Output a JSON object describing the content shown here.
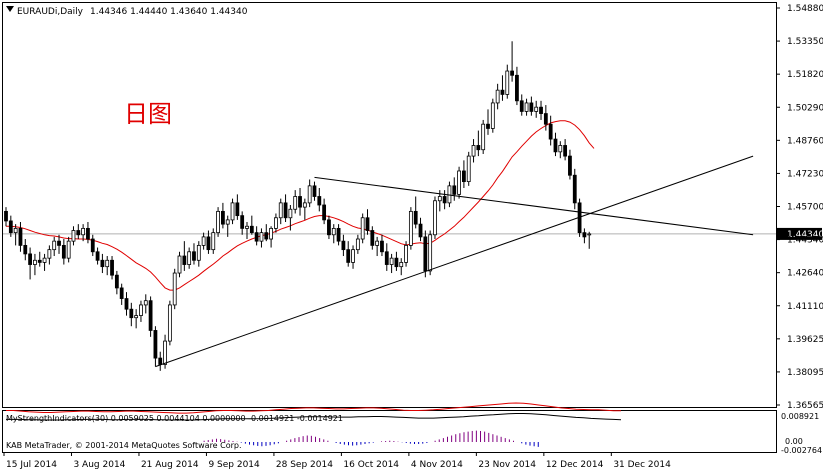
{
  "header": {
    "symbol": "EURAUDi,Daily",
    "ohlc": "1.44346 1.44440 1.43640 1.44340"
  },
  "annotation": "日图",
  "indicator": {
    "label": "MyStrengthIndicators(30) 0.0059025 0.0044104 0.0000000 -0.0014921 -0.0014921",
    "scale_top": "0.008921",
    "scale_zero": "0.00",
    "scale_bottom": "-0.002764"
  },
  "copyright": "KAB MetaTrader, © 2001-2014 MetaQuotes Software Corp.",
  "colors": {
    "candle": "#000000",
    "ma": "#e00000",
    "trendline": "#000000",
    "indicator_line_a": "#e00000",
    "indicator_line_b": "#000000",
    "indicator_hist": "#800080",
    "indicator_hist_alt": "#0000c0",
    "current_price_line": "#b0b0b0"
  },
  "chart_data": {
    "type": "candlestick",
    "price_axis": {
      "labels": [
        "1.54880",
        "1.53350",
        "1.51820",
        "1.50290",
        "1.48760",
        "1.47230",
        "1.45700",
        "1.44340",
        "1.42640",
        "1.41110",
        "1.39625",
        "1.38095",
        "1.36565"
      ],
      "ylim": [
        1.362,
        1.552
      ],
      "current_price": 1.4434,
      "current_price_label": "1.44340"
    },
    "date_axis": {
      "labels": [
        "15 Jul 2014",
        "3 Aug 2014",
        "21 Aug 2014",
        "9 Sep 2014",
        "28 Sep 2014",
        "16 Oct 2014",
        "4 Nov 2014",
        "23 Nov 2014",
        "12 Dec 2014",
        "31 Dec 2014"
      ],
      "label_bar_index": [
        0,
        14,
        28,
        42,
        56,
        70,
        84,
        98,
        112,
        126
      ]
    },
    "candles": [
      {
        "o": 1.454,
        "h": 1.456,
        "l": 1.447,
        "c": 1.4495
      },
      {
        "o": 1.4495,
        "h": 1.452,
        "l": 1.442,
        "c": 1.444
      },
      {
        "o": 1.444,
        "h": 1.448,
        "l": 1.438,
        "c": 1.446
      },
      {
        "o": 1.446,
        "h": 1.449,
        "l": 1.435,
        "c": 1.438
      },
      {
        "o": 1.438,
        "h": 1.441,
        "l": 1.431,
        "c": 1.434
      },
      {
        "o": 1.434,
        "h": 1.437,
        "l": 1.422,
        "c": 1.429
      },
      {
        "o": 1.429,
        "h": 1.434,
        "l": 1.424,
        "c": 1.431
      },
      {
        "o": 1.431,
        "h": 1.435,
        "l": 1.428,
        "c": 1.43
      },
      {
        "o": 1.43,
        "h": 1.434,
        "l": 1.426,
        "c": 1.432
      },
      {
        "o": 1.432,
        "h": 1.438,
        "l": 1.429,
        "c": 1.436
      },
      {
        "o": 1.436,
        "h": 1.442,
        "l": 1.433,
        "c": 1.44
      },
      {
        "o": 1.44,
        "h": 1.443,
        "l": 1.434,
        "c": 1.438
      },
      {
        "o": 1.438,
        "h": 1.441,
        "l": 1.429,
        "c": 1.432
      },
      {
        "o": 1.432,
        "h": 1.442,
        "l": 1.43,
        "c": 1.44
      },
      {
        "o": 1.44,
        "h": 1.447,
        "l": 1.438,
        "c": 1.445
      },
      {
        "o": 1.445,
        "h": 1.448,
        "l": 1.441,
        "c": 1.443
      },
      {
        "o": 1.443,
        "h": 1.448,
        "l": 1.44,
        "c": 1.446
      },
      {
        "o": 1.446,
        "h": 1.449,
        "l": 1.439,
        "c": 1.441
      },
      {
        "o": 1.441,
        "h": 1.443,
        "l": 1.433,
        "c": 1.435
      },
      {
        "o": 1.435,
        "h": 1.437,
        "l": 1.429,
        "c": 1.431
      },
      {
        "o": 1.431,
        "h": 1.434,
        "l": 1.425,
        "c": 1.428
      },
      {
        "o": 1.428,
        "h": 1.433,
        "l": 1.424,
        "c": 1.431
      },
      {
        "o": 1.431,
        "h": 1.433,
        "l": 1.422,
        "c": 1.424
      },
      {
        "o": 1.424,
        "h": 1.426,
        "l": 1.415,
        "c": 1.418
      },
      {
        "o": 1.418,
        "h": 1.42,
        "l": 1.41,
        "c": 1.413
      },
      {
        "o": 1.413,
        "h": 1.416,
        "l": 1.405,
        "c": 1.408
      },
      {
        "o": 1.408,
        "h": 1.411,
        "l": 1.4,
        "c": 1.404
      },
      {
        "o": 1.404,
        "h": 1.408,
        "l": 1.399,
        "c": 1.405
      },
      {
        "o": 1.405,
        "h": 1.412,
        "l": 1.402,
        "c": 1.41
      },
      {
        "o": 1.41,
        "h": 1.415,
        "l": 1.406,
        "c": 1.412
      },
      {
        "o": 1.412,
        "h": 1.414,
        "l": 1.395,
        "c": 1.398
      },
      {
        "o": 1.398,
        "h": 1.4,
        "l": 1.381,
        "c": 1.385
      },
      {
        "o": 1.385,
        "h": 1.388,
        "l": 1.379,
        "c": 1.382
      },
      {
        "o": 1.382,
        "h": 1.396,
        "l": 1.38,
        "c": 1.393
      },
      {
        "o": 1.393,
        "h": 1.412,
        "l": 1.391,
        "c": 1.41
      },
      {
        "o": 1.41,
        "h": 1.427,
        "l": 1.408,
        "c": 1.425
      },
      {
        "o": 1.425,
        "h": 1.435,
        "l": 1.423,
        "c": 1.433
      },
      {
        "o": 1.433,
        "h": 1.44,
        "l": 1.426,
        "c": 1.429
      },
      {
        "o": 1.429,
        "h": 1.437,
        "l": 1.427,
        "c": 1.435
      },
      {
        "o": 1.435,
        "h": 1.439,
        "l": 1.429,
        "c": 1.431
      },
      {
        "o": 1.431,
        "h": 1.44,
        "l": 1.428,
        "c": 1.438
      },
      {
        "o": 1.438,
        "h": 1.444,
        "l": 1.436,
        "c": 1.442
      },
      {
        "o": 1.442,
        "h": 1.445,
        "l": 1.434,
        "c": 1.436
      },
      {
        "o": 1.436,
        "h": 1.446,
        "l": 1.434,
        "c": 1.444
      },
      {
        "o": 1.444,
        "h": 1.456,
        "l": 1.442,
        "c": 1.454
      },
      {
        "o": 1.454,
        "h": 1.458,
        "l": 1.446,
        "c": 1.448
      },
      {
        "o": 1.448,
        "h": 1.452,
        "l": 1.442,
        "c": 1.45
      },
      {
        "o": 1.45,
        "h": 1.46,
        "l": 1.448,
        "c": 1.458
      },
      {
        "o": 1.458,
        "h": 1.462,
        "l": 1.45,
        "c": 1.452
      },
      {
        "o": 1.452,
        "h": 1.454,
        "l": 1.443,
        "c": 1.446
      },
      {
        "o": 1.446,
        "h": 1.449,
        "l": 1.441,
        "c": 1.447
      },
      {
        "o": 1.447,
        "h": 1.452,
        "l": 1.443,
        "c": 1.444
      },
      {
        "o": 1.444,
        "h": 1.447,
        "l": 1.438,
        "c": 1.44
      },
      {
        "o": 1.44,
        "h": 1.446,
        "l": 1.437,
        "c": 1.444
      },
      {
        "o": 1.444,
        "h": 1.448,
        "l": 1.44,
        "c": 1.441
      },
      {
        "o": 1.441,
        "h": 1.447,
        "l": 1.437,
        "c": 1.446
      },
      {
        "o": 1.446,
        "h": 1.453,
        "l": 1.444,
        "c": 1.451
      },
      {
        "o": 1.451,
        "h": 1.46,
        "l": 1.448,
        "c": 1.458
      },
      {
        "o": 1.458,
        "h": 1.462,
        "l": 1.449,
        "c": 1.451
      },
      {
        "o": 1.451,
        "h": 1.457,
        "l": 1.445,
        "c": 1.455
      },
      {
        "o": 1.455,
        "h": 1.464,
        "l": 1.453,
        "c": 1.461
      },
      {
        "o": 1.461,
        "h": 1.465,
        "l": 1.452,
        "c": 1.456
      },
      {
        "o": 1.456,
        "h": 1.46,
        "l": 1.45,
        "c": 1.458
      },
      {
        "o": 1.458,
        "h": 1.469,
        "l": 1.456,
        "c": 1.466
      },
      {
        "o": 1.466,
        "h": 1.468,
        "l": 1.459,
        "c": 1.461
      },
      {
        "o": 1.461,
        "h": 1.465,
        "l": 1.454,
        "c": 1.457
      },
      {
        "o": 1.457,
        "h": 1.46,
        "l": 1.448,
        "c": 1.45
      },
      {
        "o": 1.45,
        "h": 1.452,
        "l": 1.441,
        "c": 1.443
      },
      {
        "o": 1.443,
        "h": 1.448,
        "l": 1.439,
        "c": 1.446
      },
      {
        "o": 1.446,
        "h": 1.448,
        "l": 1.438,
        "c": 1.44
      },
      {
        "o": 1.44,
        "h": 1.443,
        "l": 1.433,
        "c": 1.436
      },
      {
        "o": 1.436,
        "h": 1.44,
        "l": 1.428,
        "c": 1.43
      },
      {
        "o": 1.43,
        "h": 1.438,
        "l": 1.427,
        "c": 1.436
      },
      {
        "o": 1.436,
        "h": 1.443,
        "l": 1.434,
        "c": 1.441
      },
      {
        "o": 1.441,
        "h": 1.453,
        "l": 1.439,
        "c": 1.451
      },
      {
        "o": 1.451,
        "h": 1.455,
        "l": 1.443,
        "c": 1.445
      },
      {
        "o": 1.445,
        "h": 1.447,
        "l": 1.436,
        "c": 1.438
      },
      {
        "o": 1.438,
        "h": 1.442,
        "l": 1.433,
        "c": 1.44
      },
      {
        "o": 1.44,
        "h": 1.443,
        "l": 1.433,
        "c": 1.435
      },
      {
        "o": 1.435,
        "h": 1.439,
        "l": 1.426,
        "c": 1.429
      },
      {
        "o": 1.429,
        "h": 1.434,
        "l": 1.425,
        "c": 1.432
      },
      {
        "o": 1.432,
        "h": 1.435,
        "l": 1.426,
        "c": 1.428
      },
      {
        "o": 1.428,
        "h": 1.432,
        "l": 1.424,
        "c": 1.43
      },
      {
        "o": 1.43,
        "h": 1.44,
        "l": 1.428,
        "c": 1.438
      },
      {
        "o": 1.438,
        "h": 1.456,
        "l": 1.436,
        "c": 1.454
      },
      {
        "o": 1.454,
        "h": 1.461,
        "l": 1.446,
        "c": 1.448
      },
      {
        "o": 1.448,
        "h": 1.451,
        "l": 1.44,
        "c": 1.442
      },
      {
        "o": 1.442,
        "h": 1.445,
        "l": 1.423,
        "c": 1.426
      },
      {
        "o": 1.426,
        "h": 1.445,
        "l": 1.424,
        "c": 1.443
      },
      {
        "o": 1.443,
        "h": 1.461,
        "l": 1.441,
        "c": 1.459
      },
      {
        "o": 1.459,
        "h": 1.464,
        "l": 1.454,
        "c": 1.461
      },
      {
        "o": 1.461,
        "h": 1.464,
        "l": 1.455,
        "c": 1.458
      },
      {
        "o": 1.458,
        "h": 1.468,
        "l": 1.456,
        "c": 1.466
      },
      {
        "o": 1.466,
        "h": 1.47,
        "l": 1.459,
        "c": 1.462
      },
      {
        "o": 1.462,
        "h": 1.475,
        "l": 1.46,
        "c": 1.473
      },
      {
        "o": 1.473,
        "h": 1.478,
        "l": 1.465,
        "c": 1.468
      },
      {
        "o": 1.468,
        "h": 1.482,
        "l": 1.466,
        "c": 1.48
      },
      {
        "o": 1.48,
        "h": 1.488,
        "l": 1.477,
        "c": 1.485
      },
      {
        "o": 1.485,
        "h": 1.492,
        "l": 1.48,
        "c": 1.483
      },
      {
        "o": 1.483,
        "h": 1.497,
        "l": 1.481,
        "c": 1.495
      },
      {
        "o": 1.495,
        "h": 1.502,
        "l": 1.49,
        "c": 1.493
      },
      {
        "o": 1.493,
        "h": 1.507,
        "l": 1.491,
        "c": 1.505
      },
      {
        "o": 1.505,
        "h": 1.514,
        "l": 1.502,
        "c": 1.511
      },
      {
        "o": 1.511,
        "h": 1.518,
        "l": 1.506,
        "c": 1.509
      },
      {
        "o": 1.509,
        "h": 1.523,
        "l": 1.507,
        "c": 1.52
      },
      {
        "o": 1.52,
        "h": 1.534,
        "l": 1.515,
        "c": 1.518
      },
      {
        "o": 1.518,
        "h": 1.522,
        "l": 1.504,
        "c": 1.506
      },
      {
        "o": 1.506,
        "h": 1.509,
        "l": 1.499,
        "c": 1.501
      },
      {
        "o": 1.501,
        "h": 1.507,
        "l": 1.499,
        "c": 1.505
      },
      {
        "o": 1.505,
        "h": 1.508,
        "l": 1.499,
        "c": 1.501
      },
      {
        "o": 1.501,
        "h": 1.506,
        "l": 1.498,
        "c": 1.503
      },
      {
        "o": 1.503,
        "h": 1.506,
        "l": 1.497,
        "c": 1.5
      },
      {
        "o": 1.5,
        "h": 1.504,
        "l": 1.492,
        "c": 1.495
      },
      {
        "o": 1.495,
        "h": 1.499,
        "l": 1.485,
        "c": 1.488
      },
      {
        "o": 1.488,
        "h": 1.491,
        "l": 1.48,
        "c": 1.482
      },
      {
        "o": 1.482,
        "h": 1.487,
        "l": 1.479,
        "c": 1.485
      },
      {
        "o": 1.485,
        "h": 1.488,
        "l": 1.478,
        "c": 1.48
      },
      {
        "o": 1.48,
        "h": 1.483,
        "l": 1.469,
        "c": 1.471
      },
      {
        "o": 1.471,
        "h": 1.474,
        "l": 1.455,
        "c": 1.458
      },
      {
        "o": 1.458,
        "h": 1.46,
        "l": 1.442,
        "c": 1.444
      },
      {
        "o": 1.444,
        "h": 1.446,
        "l": 1.439,
        "c": 1.442
      },
      {
        "o": 1.4434,
        "h": 1.4444,
        "l": 1.4364,
        "c": 1.4434
      }
    ],
    "moving_average": [
      1.447,
      1.447,
      1.4468,
      1.4464,
      1.4458,
      1.445,
      1.4442,
      1.4436,
      1.443,
      1.4426,
      1.4424,
      1.442,
      1.4415,
      1.4412,
      1.4412,
      1.441,
      1.441,
      1.4408,
      1.4404,
      1.4398,
      1.439,
      1.4384,
      1.4374,
      1.4362,
      1.4348,
      1.4332,
      1.4315,
      1.4298,
      1.4285,
      1.4272,
      1.4255,
      1.4232,
      1.4205,
      1.418,
      1.417,
      1.417,
      1.418,
      1.4195,
      1.421,
      1.4225,
      1.424,
      1.4258,
      1.4275,
      1.4292,
      1.431,
      1.433,
      1.4345,
      1.4362,
      1.4378,
      1.439,
      1.44,
      1.441,
      1.4418,
      1.4426,
      1.443,
      1.4438,
      1.4446,
      1.4456,
      1.4464,
      1.4472,
      1.4482,
      1.449,
      1.4498,
      1.4508,
      1.4516,
      1.452,
      1.452,
      1.4516,
      1.451,
      1.4502,
      1.4492,
      1.448,
      1.447,
      1.4462,
      1.4458,
      1.4452,
      1.4444,
      1.4436,
      1.4428,
      1.4418,
      1.4408,
      1.4398,
      1.4388,
      1.4382,
      1.4386,
      1.439,
      1.4392,
      1.4388,
      1.439,
      1.4404,
      1.442,
      1.4434,
      1.4452,
      1.447,
      1.4492,
      1.4512,
      1.4536,
      1.456,
      1.4584,
      1.461,
      1.4636,
      1.4664,
      1.4698,
      1.4728,
      1.4762,
      1.4796,
      1.482,
      1.4846,
      1.487,
      1.4894,
      1.4914,
      1.493,
      1.4944,
      1.4956,
      1.4962,
      1.4966,
      1.4966,
      1.496,
      1.4946,
      1.4924,
      1.4896,
      1.4862,
      1.4836
    ],
    "ma_start_index": 0,
    "trendlines": [
      {
        "from": {
          "bar": 31,
          "price": 1.381
        },
        "to": {
          "bar": 155,
          "price": 1.48
        }
      },
      {
        "from": {
          "bar": 64,
          "price": 1.47
        },
        "to": {
          "bar": 155,
          "price": 1.443
        }
      }
    ],
    "indicator_line_a": [
      0.006,
      0.006,
      0.0058,
      0.0056,
      0.0055,
      0.0054,
      0.0054,
      0.0055,
      0.0056,
      0.0057,
      0.0058,
      0.0058,
      0.0057,
      0.0056,
      0.0056,
      0.0057,
      0.0058,
      0.0058,
      0.0057,
      0.0056,
      0.0055,
      0.0054,
      0.0053,
      0.0052,
      0.0052,
      0.0053,
      0.0055,
      0.0057,
      0.0059,
      0.006,
      0.006,
      0.0059,
      0.0058,
      0.0058,
      0.0059,
      0.006,
      0.0062,
      0.0064,
      0.0066,
      0.0067,
      0.0068,
      0.0068,
      0.0067,
      0.0066,
      0.0065,
      0.0065,
      0.0066,
      0.0067,
      0.0068,
      0.0068,
      0.0067,
      0.0065,
      0.0063,
      0.0061,
      0.006,
      0.006,
      0.0061,
      0.0062,
      0.0064,
      0.0066,
      0.0068,
      0.007,
      0.0072,
      0.0074,
      0.0076,
      0.0078,
      0.008,
      0.0082,
      0.0083,
      0.0082,
      0.008,
      0.0077,
      0.0074,
      0.0071,
      0.0068,
      0.0066,
      0.0064,
      0.0063,
      0.0062,
      0.0062,
      0.0061,
      0.0059,
      0.0059
    ],
    "indicator_line_b": [
      0.0045,
      0.0045,
      0.0045,
      0.0044,
      0.0044,
      0.0043,
      0.0043,
      0.0043,
      0.0044,
      0.0044,
      0.0045,
      0.0045,
      0.0045,
      0.0045,
      0.0044,
      0.0044,
      0.0045,
      0.0045,
      0.0045,
      0.0045,
      0.0044,
      0.0044,
      0.0043,
      0.0043,
      0.0043,
      0.0043,
      0.0044,
      0.0045,
      0.0046,
      0.0047,
      0.0047,
      0.0047,
      0.0047,
      0.0047,
      0.0047,
      0.0048,
      0.0049,
      0.005,
      0.0051,
      0.0052,
      0.0053,
      0.0053,
      0.0053,
      0.0053,
      0.0052,
      0.0052,
      0.0052,
      0.0053,
      0.0053,
      0.0054,
      0.0054,
      0.0053,
      0.0052,
      0.0051,
      0.005,
      0.0049,
      0.0049,
      0.0049,
      0.005,
      0.0051,
      0.0052,
      0.0053,
      0.0055,
      0.0056,
      0.0058,
      0.0059,
      0.0061,
      0.0062,
      0.0063,
      0.0063,
      0.0062,
      0.0061,
      0.0059,
      0.0057,
      0.0055,
      0.0053,
      0.0051,
      0.005,
      0.0048,
      0.0047,
      0.0046,
      0.0045,
      0.0044
    ],
    "indicator_hist": [
      0.0,
      0.0004,
      0.0006,
      0.0008,
      0.001,
      0.0009,
      0.0007,
      0.0005,
      0.0003,
      0.0001,
      -0.0002,
      -0.0005,
      -0.0008,
      -0.001,
      -0.0012,
      -0.0013,
      -0.0012,
      -0.001,
      -0.0007,
      -0.0004,
      0.0,
      0.0004,
      0.0008,
      0.0012,
      0.0015,
      0.0018,
      0.002,
      0.0019,
      0.0016,
      0.0012,
      0.0008,
      0.0004,
      0.0,
      -0.0003,
      -0.0006,
      -0.0008,
      -0.001,
      -0.0011,
      -0.001,
      -0.0008,
      -0.0006,
      -0.0004,
      -0.0002,
      0.0,
      0.0002,
      0.0003,
      0.0004,
      0.0003,
      0.0001,
      -0.0001,
      -0.0003,
      -0.0005,
      -0.0006,
      -0.0006,
      -0.0005,
      -0.0003,
      0.0,
      0.0004,
      0.0008,
      0.0012,
      0.0016,
      0.002,
      0.0024,
      0.0027,
      0.003,
      0.0032,
      0.0034,
      0.0035,
      0.0034,
      0.0032,
      0.0028,
      0.0024,
      0.002,
      0.0016,
      0.0012,
      0.0008,
      0.0004,
      0.0,
      -0.0004,
      -0.0008,
      -0.0011,
      -0.0013,
      -0.0015
    ]
  }
}
